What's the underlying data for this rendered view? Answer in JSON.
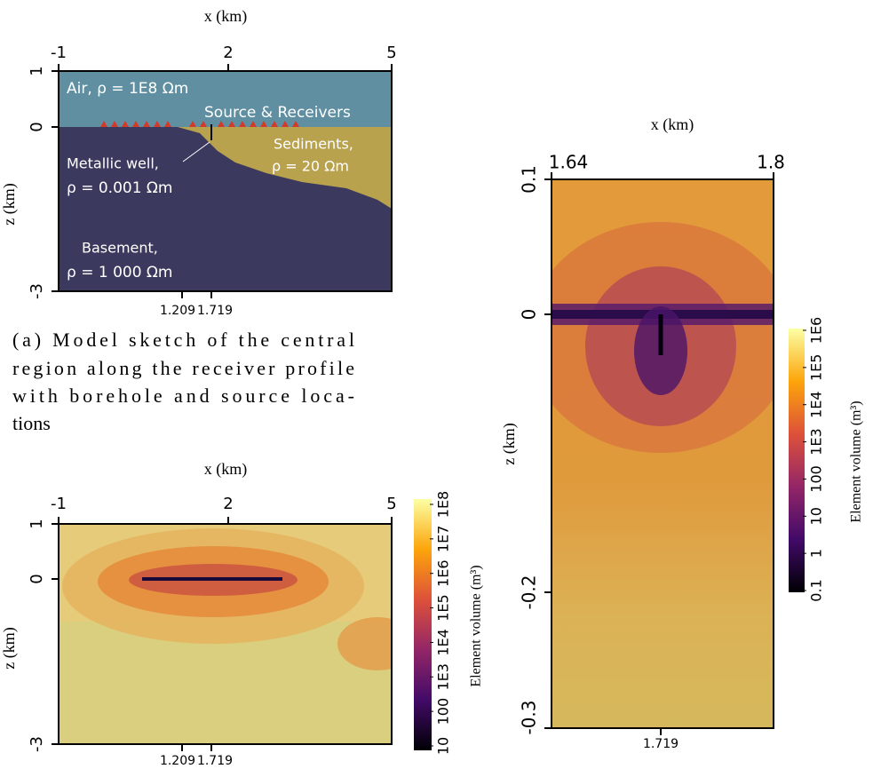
{
  "panel_a": {
    "x_label": "x (km)",
    "x_ticks": [
      "-1",
      "2",
      "5"
    ],
    "z_label": "z (km)",
    "z_ticks": [
      "1",
      "0",
      "-3"
    ],
    "bottom_ticks": [
      "1.209",
      "1.719"
    ],
    "air": "Air, ρ = 1E8 Ωm",
    "source": "Source & Receivers",
    "sediments": [
      "Sediments,",
      "ρ = 20 Ωm"
    ],
    "well": [
      "Metallic well,",
      "ρ = 0.001 Ωm"
    ],
    "basement": [
      "Basement,",
      "ρ = 1 000 Ωm"
    ],
    "caption": [
      "(a) Model sketch of the central",
      "region along the receiver profile",
      "with borehole and source loca-",
      "tions"
    ]
  },
  "panel_b": {
    "x_label": "x (km)",
    "x_ticks": [
      "-1",
      "2",
      "5"
    ],
    "z_label": "z (km)",
    "z_ticks": [
      "1",
      "0",
      "-3"
    ],
    "bottom_ticks": [
      "1.209",
      "1.719"
    ],
    "colorbar_ticks": [
      "10",
      "100",
      "1E3",
      "1E4",
      "1E5",
      "1E6",
      "1E7",
      "1E8"
    ],
    "colorbar_label": "Element volume (m³)"
  },
  "panel_c": {
    "x_label": "x (km)",
    "x_ticks": [
      "1.64",
      "1.8"
    ],
    "z_label": "z (km)",
    "z_ticks": [
      "0.1",
      "0",
      "-0.2",
      "-0.3"
    ],
    "bottom_ticks": [
      "1.719"
    ],
    "colorbar_ticks": [
      "0.1",
      "1",
      "10",
      "100",
      "1E3",
      "1E4",
      "1E5",
      "1E6"
    ],
    "colorbar_label": "Element volume (m³)"
  }
}
